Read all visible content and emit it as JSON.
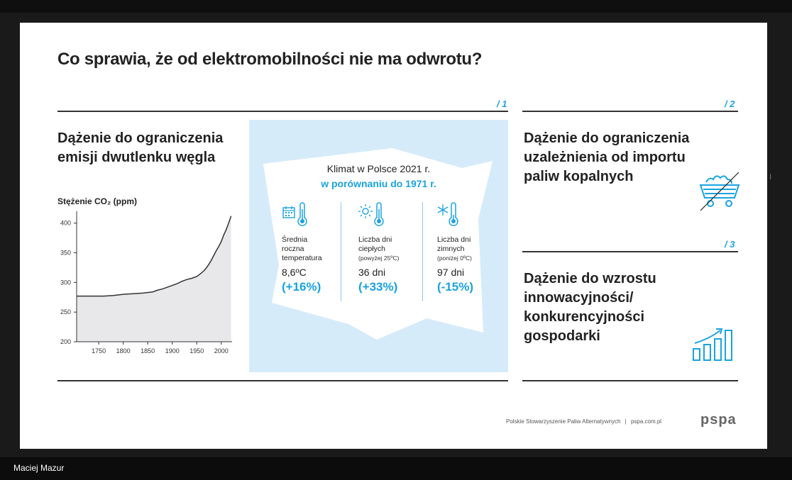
{
  "slide": {
    "title": "Co sprawia, że od elektromobilności nie ma odwrotu?",
    "section1": {
      "number": "/ 1",
      "heading_line1": "Dążenie do ograniczenia",
      "heading_line2": "emisji dwutlenku węgla"
    },
    "section2": {
      "number": "/ 2",
      "heading_line1": "Dążenie do ograniczenia",
      "heading_line2": "uzależnienia od importu",
      "heading_line3": "paliw kopalnych"
    },
    "section3": {
      "number": "/ 3",
      "heading_line1": "Dążenie do wzrostu",
      "heading_line2": "innowacyjności/",
      "heading_line3": "konkurencyjności",
      "heading_line4": "gospodarki"
    },
    "climate": {
      "title_line1": "Klimat w Polsce 2021 r.",
      "title_line2": "w porównaniu do 1971 r.",
      "stats": [
        {
          "label1": "Średnia",
          "label2": "roczna",
          "label3": "temperatura",
          "value": "8,6ºC",
          "change": "(+16%)"
        },
        {
          "label1": "Liczba dni",
          "label2": "ciepłych",
          "sub": "(powyżej 25ºC)",
          "value": "36 dni",
          "change": "(+33%)"
        },
        {
          "label1": "Liczba dni",
          "label2": "zimnych",
          "sub": "(poniżej 0ºC)",
          "value": "97 dni",
          "change": "(-15%)"
        }
      ]
    },
    "footer": {
      "org": "Polskie Stowarzyszenie Paliw Alternatywnych",
      "separator": "|",
      "url": "pspa.com.pl",
      "logo": "pspa"
    }
  },
  "chart_data": {
    "type": "area",
    "title": "Stężenie CO₂ (ppm)",
    "xlabel": "",
    "ylabel": "",
    "x_ticks": [
      1750,
      1800,
      1850,
      1900,
      1950,
      2000
    ],
    "y_ticks": [
      200,
      250,
      300,
      350,
      400
    ],
    "xlim": [
      1705,
      2022
    ],
    "ylim": [
      200,
      420
    ],
    "grid": false,
    "series": [
      {
        "x": [
          1705,
          1720,
          1740,
          1760,
          1780,
          1800,
          1820,
          1840,
          1860,
          1870,
          1880,
          1890,
          1900,
          1910,
          1920,
          1930,
          1940,
          1950,
          1958,
          1965,
          1970,
          1975,
          1980,
          1985,
          1990,
          1995,
          2000,
          2005,
          2010,
          2015,
          2020
        ],
        "y": [
          277,
          277,
          277,
          277,
          278,
          280,
          281,
          282,
          284,
          287,
          289,
          292,
          295,
          298,
          302,
          305,
          307,
          310,
          315,
          320,
          325,
          331,
          338,
          346,
          354,
          361,
          369,
          380,
          389,
          400,
          412
        ]
      }
    ],
    "colors": {
      "fill": "#e8e8ea",
      "line": "#333333"
    }
  },
  "colors": {
    "accent": "#1aa3e0",
    "panel": "#d6ebfa",
    "text": "#222222"
  },
  "icons": [
    "calendar-icon",
    "thermometer-icon",
    "sun-icon",
    "snowflake-icon",
    "coal-cart-icon",
    "growth-chart-icon",
    "text-cursor-icon"
  ],
  "presenter": {
    "name": "Maciej Mazur"
  }
}
